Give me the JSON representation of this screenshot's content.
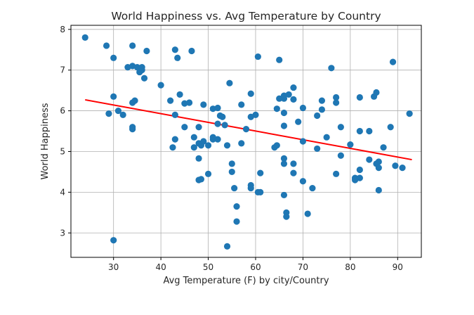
{
  "chart_data": {
    "type": "scatter",
    "title": "World Happiness vs. Avg Temperature by Country",
    "xlabel": "Avg Temperature (F) by city/Country",
    "ylabel": "World Happiness",
    "xlim": [
      21,
      95
    ],
    "ylim": [
      2.4,
      8.1
    ],
    "xticks": [
      30,
      40,
      50,
      60,
      70,
      80,
      90
    ],
    "yticks": [
      3,
      4,
      5,
      6,
      7,
      8
    ],
    "grid": true,
    "colors": {
      "points": "#1f77b4",
      "regression": "#ff0000",
      "grid": "#b0b0b0",
      "axis": "#000000"
    },
    "regression": {
      "x": [
        24,
        93
      ],
      "y": [
        6.27,
        4.8
      ]
    },
    "points": [
      [
        24,
        7.8
      ],
      [
        28.5,
        7.6
      ],
      [
        29,
        5.93
      ],
      [
        30,
        7.3
      ],
      [
        30,
        6.35
      ],
      [
        30,
        2.82
      ],
      [
        31,
        6.0
      ],
      [
        32,
        5.9
      ],
      [
        33,
        7.07
      ],
      [
        34,
        7.1
      ],
      [
        34,
        7.6
      ],
      [
        34,
        5.6
      ],
      [
        34,
        5.55
      ],
      [
        34,
        6.2
      ],
      [
        34.5,
        6.25
      ],
      [
        35,
        7.07
      ],
      [
        35.5,
        6.95
      ],
      [
        36,
        7.0
      ],
      [
        36,
        7.07
      ],
      [
        36.5,
        6.8
      ],
      [
        37,
        7.47
      ],
      [
        40,
        6.63
      ],
      [
        42,
        6.25
      ],
      [
        42.5,
        5.1
      ],
      [
        43,
        7.5
      ],
      [
        43,
        5.9
      ],
      [
        43,
        5.3
      ],
      [
        43.5,
        7.3
      ],
      [
        44,
        6.4
      ],
      [
        45,
        6.18
      ],
      [
        45,
        5.6
      ],
      [
        46,
        6.2
      ],
      [
        46.5,
        7.47
      ],
      [
        47,
        5.35
      ],
      [
        47,
        5.1
      ],
      [
        48,
        5.6
      ],
      [
        48,
        5.2
      ],
      [
        48,
        4.83
      ],
      [
        48,
        4.3
      ],
      [
        48.5,
        5.15
      ],
      [
        48.5,
        4.32
      ],
      [
        49,
        6.15
      ],
      [
        49,
        5.25
      ],
      [
        50,
        5.15
      ],
      [
        50,
        4.45
      ],
      [
        51,
        6.05
      ],
      [
        51,
        5.35
      ],
      [
        51,
        5.3
      ],
      [
        52,
        5.68
      ],
      [
        52,
        6.07
      ],
      [
        52,
        5.3
      ],
      [
        52.5,
        5.88
      ],
      [
        53,
        5.85
      ],
      [
        53.5,
        5.65
      ],
      [
        54,
        5.15
      ],
      [
        54,
        2.67
      ],
      [
        54.5,
        6.68
      ],
      [
        55,
        4.5
      ],
      [
        55,
        4.7
      ],
      [
        55.5,
        4.1
      ],
      [
        56,
        3.65
      ],
      [
        56,
        3.28
      ],
      [
        57,
        6.15
      ],
      [
        57,
        5.2
      ],
      [
        58,
        5.55
      ],
      [
        59,
        6.42
      ],
      [
        59,
        5.85
      ],
      [
        59,
        4.17
      ],
      [
        59,
        4.1
      ],
      [
        60,
        5.9
      ],
      [
        60.5,
        7.33
      ],
      [
        60.5,
        4.0
      ],
      [
        61,
        4.47
      ],
      [
        61,
        4.0
      ],
      [
        64,
        5.1
      ],
      [
        64.5,
        5.15
      ],
      [
        64.5,
        6.05
      ],
      [
        65,
        7.25
      ],
      [
        65,
        6.3
      ],
      [
        66,
        6.3
      ],
      [
        66,
        6.37
      ],
      [
        66,
        5.95
      ],
      [
        66,
        5.63
      ],
      [
        66,
        4.83
      ],
      [
        66,
        4.7
      ],
      [
        66,
        3.93
      ],
      [
        66.5,
        3.5
      ],
      [
        66.5,
        3.4
      ],
      [
        67,
        6.4
      ],
      [
        68,
        6.57
      ],
      [
        68,
        6.28
      ],
      [
        68,
        4.7
      ],
      [
        68,
        4.47
      ],
      [
        69,
        5.73
      ],
      [
        70,
        6.07
      ],
      [
        70,
        5.25
      ],
      [
        70,
        4.27
      ],
      [
        71,
        3.47
      ],
      [
        72,
        4.1
      ],
      [
        73,
        5.88
      ],
      [
        73,
        5.07
      ],
      [
        74,
        6.03
      ],
      [
        74,
        6.25
      ],
      [
        75,
        5.35
      ],
      [
        76,
        7.05
      ],
      [
        77,
        6.33
      ],
      [
        77,
        6.2
      ],
      [
        77,
        4.45
      ],
      [
        78,
        5.6
      ],
      [
        78,
        4.9
      ],
      [
        80,
        5.17
      ],
      [
        81,
        4.35
      ],
      [
        81,
        4.3
      ],
      [
        82,
        6.33
      ],
      [
        82,
        5.5
      ],
      [
        82,
        4.55
      ],
      [
        82,
        4.35
      ],
      [
        84,
        5.5
      ],
      [
        84,
        4.8
      ],
      [
        85,
        6.35
      ],
      [
        85.5,
        6.45
      ],
      [
        85.5,
        4.7
      ],
      [
        86,
        4.75
      ],
      [
        86,
        4.6
      ],
      [
        86,
        4.05
      ],
      [
        87,
        5.1
      ],
      [
        88.5,
        5.6
      ],
      [
        89,
        7.2
      ],
      [
        89.5,
        4.65
      ],
      [
        91,
        4.6
      ],
      [
        92.5,
        5.93
      ]
    ]
  }
}
